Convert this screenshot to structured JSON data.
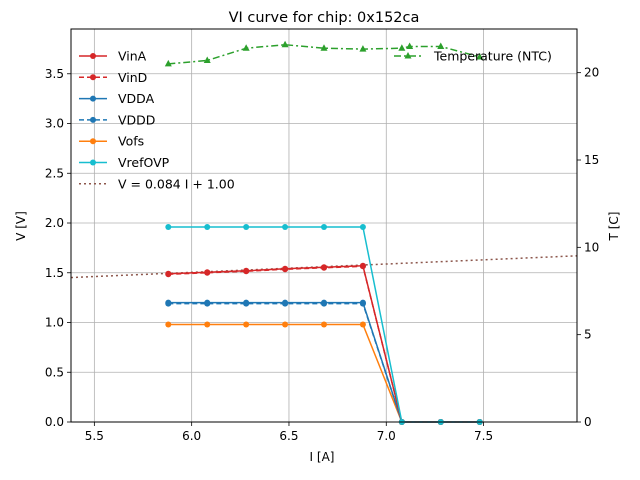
{
  "chart_data": {
    "type": "line",
    "title": "VI curve for chip: 0x152ca",
    "xlabel": "I [A]",
    "ylabel": "V [V]",
    "y2label": "T [C]",
    "xlim": [
      5.38,
      7.98
    ],
    "ylim": [
      0,
      3.95
    ],
    "y2lim": [
      0,
      22.5
    ],
    "grid": true,
    "xticks": [
      5.5,
      6.0,
      6.5,
      7.0,
      7.5
    ],
    "xtick_labels": [
      "5.5",
      "6.0",
      "6.5",
      "7.0",
      "7.5"
    ],
    "yticks": [
      0.0,
      0.5,
      1.0,
      1.5,
      2.0,
      2.5,
      3.0,
      3.5
    ],
    "ytick_labels": [
      "0.0",
      "0.5",
      "1.0",
      "1.5",
      "2.0",
      "2.5",
      "3.0",
      "3.5"
    ],
    "y2ticks": [
      0,
      5,
      10,
      15,
      20
    ],
    "y2tick_labels": [
      "0",
      "5",
      "10",
      "15",
      "20"
    ],
    "x": [
      5.88,
      6.08,
      6.28,
      6.48,
      6.68,
      6.88,
      7.08,
      7.28,
      7.48
    ],
    "series": [
      {
        "name": "VinA",
        "color": "#d62728",
        "style": "solid",
        "marker": "circle",
        "axis": "left",
        "values": [
          1.49,
          1.505,
          1.52,
          1.54,
          1.555,
          1.57,
          0.0,
          0.0,
          0.0
        ]
      },
      {
        "name": "VinD",
        "color": "#d62728",
        "style": "dashed",
        "marker": "circle",
        "axis": "left",
        "values": [
          1.485,
          1.5,
          1.515,
          1.535,
          1.55,
          1.565,
          0.0,
          0.0,
          0.0
        ]
      },
      {
        "name": "VDDA",
        "color": "#1f77b4",
        "style": "solid",
        "marker": "circle",
        "axis": "left",
        "values": [
          1.2,
          1.2,
          1.2,
          1.2,
          1.2,
          1.2,
          0.0,
          0.0,
          0.0
        ]
      },
      {
        "name": "VDDD",
        "color": "#1f77b4",
        "style": "dashed",
        "marker": "circle",
        "axis": "left",
        "values": [
          1.19,
          1.19,
          1.19,
          1.19,
          1.19,
          1.19,
          0.0,
          0.0,
          0.0
        ]
      },
      {
        "name": "Vofs",
        "color": "#ff7f0e",
        "style": "solid",
        "marker": "circle",
        "axis": "left",
        "values": [
          0.98,
          0.98,
          0.98,
          0.98,
          0.98,
          0.98,
          0.0,
          0.0,
          0.0
        ]
      },
      {
        "name": "VrefOVP",
        "color": "#17becf",
        "style": "solid",
        "marker": "circle",
        "axis": "left",
        "values": [
          1.96,
          1.96,
          1.96,
          1.96,
          1.96,
          1.96,
          0.0,
          0.0,
          0.0
        ]
      }
    ],
    "fit": {
      "name": "V = 0.084 I + 1.00",
      "slope": 0.084,
      "intercept": 1.0,
      "color": "#8c564b",
      "style": "dotted",
      "x_range": [
        5.38,
        7.98
      ]
    },
    "temperature": {
      "name": "Temperature (NTC)",
      "color": "#2ca02c",
      "style": "dashdot",
      "marker": "triangle",
      "axis": "right",
      "x": [
        5.88,
        6.08,
        6.28,
        6.48,
        6.68,
        6.88,
        7.08,
        7.12,
        7.28,
        7.48
      ],
      "values": [
        20.5,
        20.7,
        21.4,
        21.6,
        21.4,
        21.35,
        21.4,
        21.5,
        21.5,
        20.9
      ]
    }
  }
}
